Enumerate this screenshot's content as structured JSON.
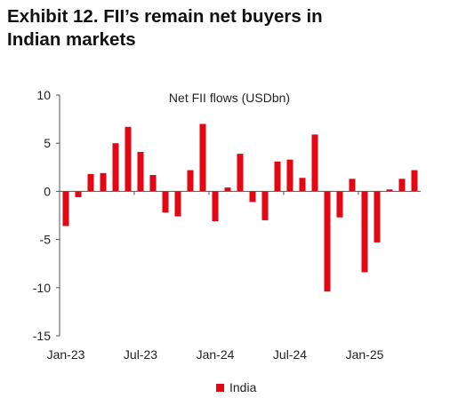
{
  "header": {
    "title_line1": "Exhibit 12. FII’s remain net buyers in",
    "title_line2": "Indian markets"
  },
  "colors": {
    "bar": "#e30613",
    "axis": "#555555",
    "text": "#222222"
  },
  "chart_data": {
    "type": "bar",
    "title": "Net FII flows (USDbn)",
    "xlabel": "",
    "ylabel": "",
    "ylim": [
      -15,
      10
    ],
    "yticks": [
      10,
      5,
      0,
      -5,
      -10,
      -15
    ],
    "grid": false,
    "legend_position": "bottom-center",
    "x_tick_labels": [
      {
        "label": "Jan-23",
        "index": 0
      },
      {
        "label": "Jul-23",
        "index": 6
      },
      {
        "label": "Jan-24",
        "index": 12
      },
      {
        "label": "Jul-24",
        "index": 18
      },
      {
        "label": "Jan-25",
        "index": 24
      }
    ],
    "categories": [
      "Jan-23",
      "Feb-23",
      "Mar-23",
      "Apr-23",
      "May-23",
      "Jun-23",
      "Jul-23",
      "Aug-23",
      "Sep-23",
      "Oct-23",
      "Nov-23",
      "Dec-23",
      "Jan-24",
      "Feb-24",
      "Mar-24",
      "Apr-24",
      "May-24",
      "Jun-24",
      "Jul-24",
      "Aug-24",
      "Sep-24",
      "Oct-24",
      "Nov-24",
      "Dec-24",
      "Jan-25",
      "Feb-25",
      "Mar-25",
      "Apr-25",
      "May-25"
    ],
    "series": [
      {
        "name": "India",
        "values": [
          -3.6,
          -0.6,
          1.8,
          1.9,
          5.0,
          6.7,
          4.1,
          1.7,
          -2.2,
          -2.6,
          2.2,
          7.0,
          -3.1,
          0.4,
          3.9,
          -1.1,
          -3.0,
          3.1,
          3.3,
          1.4,
          5.9,
          -10.4,
          -2.7,
          1.3,
          -8.4,
          -5.3,
          0.2,
          1.3,
          2.2
        ]
      }
    ]
  }
}
